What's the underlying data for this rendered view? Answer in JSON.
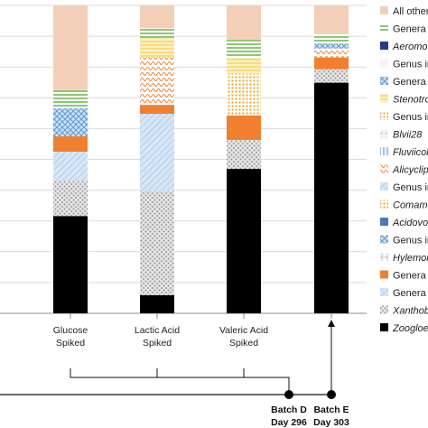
{
  "chart_data": {
    "type": "bar",
    "stacked": true,
    "normalized": true,
    "ylim": [
      0,
      1
    ],
    "categories": [
      "Glucose\nSpiked",
      "Lactic Acid\nSpiked",
      "Valeric Acid\nSpiked",
      ""
    ],
    "legend_position": "right",
    "series": [
      {
        "name": "Zoogloe",
        "italic": true,
        "values": [
          0.316,
          0.059,
          0.469,
          0.749
        ]
      },
      {
        "name": "Xanthob",
        "italic": true,
        "values": [
          0.115,
          0.338,
          0.094,
          0.044
        ]
      },
      {
        "name": "Genera",
        "italic": false,
        "values": [
          0.094,
          0.0,
          0.0,
          0.0
        ]
      },
      {
        "name": "Genera",
        "italic": false,
        "values": [
          0.0,
          0.251,
          0.0,
          0.0
        ]
      },
      {
        "name": "Genera",
        "italic": false,
        "values": [
          0.05,
          0.029,
          0.08,
          0.038
        ]
      },
      {
        "name": "Hylemon",
        "italic": true,
        "values": [
          0.0,
          0.0,
          0.0,
          0.0
        ]
      },
      {
        "name": "Genus in",
        "italic": false,
        "values": [
          0.091,
          0.0,
          0.0,
          0.0
        ]
      },
      {
        "name": "Acidovo",
        "italic": true,
        "values": [
          0.0,
          0.0,
          0.0,
          0.0
        ]
      },
      {
        "name": "Comame",
        "italic": true,
        "values": [
          0.0,
          0.0,
          0.136,
          0.0
        ]
      },
      {
        "name": "Genus in",
        "italic": false,
        "values": [
          0.0,
          0.0,
          0.0,
          0.0
        ]
      },
      {
        "name": "Alicyclip",
        "italic": true,
        "values": [
          0.0,
          0.155,
          0.0,
          0.029
        ]
      },
      {
        "name": "Fluviicol",
        "italic": true,
        "values": [
          0.0,
          0.0,
          0.0,
          0.0
        ]
      },
      {
        "name": "Blvii28",
        "italic": true,
        "values": [
          0.0,
          0.0,
          0.0,
          0.0
        ]
      },
      {
        "name": "Genus in",
        "italic": false,
        "values": [
          0.0,
          0.0,
          0.0,
          0.0
        ]
      },
      {
        "name": "Stenotro",
        "italic": true,
        "values": [
          0.0,
          0.062,
          0.05,
          0.0
        ]
      },
      {
        "name": "Genera in",
        "italic": false,
        "values": [
          0.0,
          0.0,
          0.0,
          0.015
        ]
      },
      {
        "name": "Genus in",
        "italic": false,
        "values": [
          0.0,
          0.0,
          0.0,
          0.0
        ]
      },
      {
        "name": "Aeromo",
        "italic": true,
        "values": [
          0.0,
          0.0,
          0.0,
          0.0
        ]
      },
      {
        "name": "Genera in",
        "italic": false,
        "values": [
          0.059,
          0.032,
          0.059,
          0.032
        ]
      },
      {
        "name": "All other",
        "italic": false,
        "values": [
          0.275,
          0.074,
          0.112,
          0.093
        ]
      }
    ],
    "annotations": {
      "batches": [
        {
          "line1": "Batch D",
          "line2": "Day 296"
        },
        {
          "line1": "Batch E",
          "line2": "Day 303"
        }
      ]
    }
  },
  "colors": {
    "zoogloe": "#000000",
    "xanthob": "#c8c8c8",
    "light_blue": "#bcd5ee",
    "orange": "#f07f2f",
    "blue_hatch": "#5b9bd5",
    "yellow": "#f3cf58",
    "green": "#5fae3c",
    "peach": "#f4cfb7",
    "navy": "#1f3d8c",
    "grid": "#d9d9d9"
  }
}
